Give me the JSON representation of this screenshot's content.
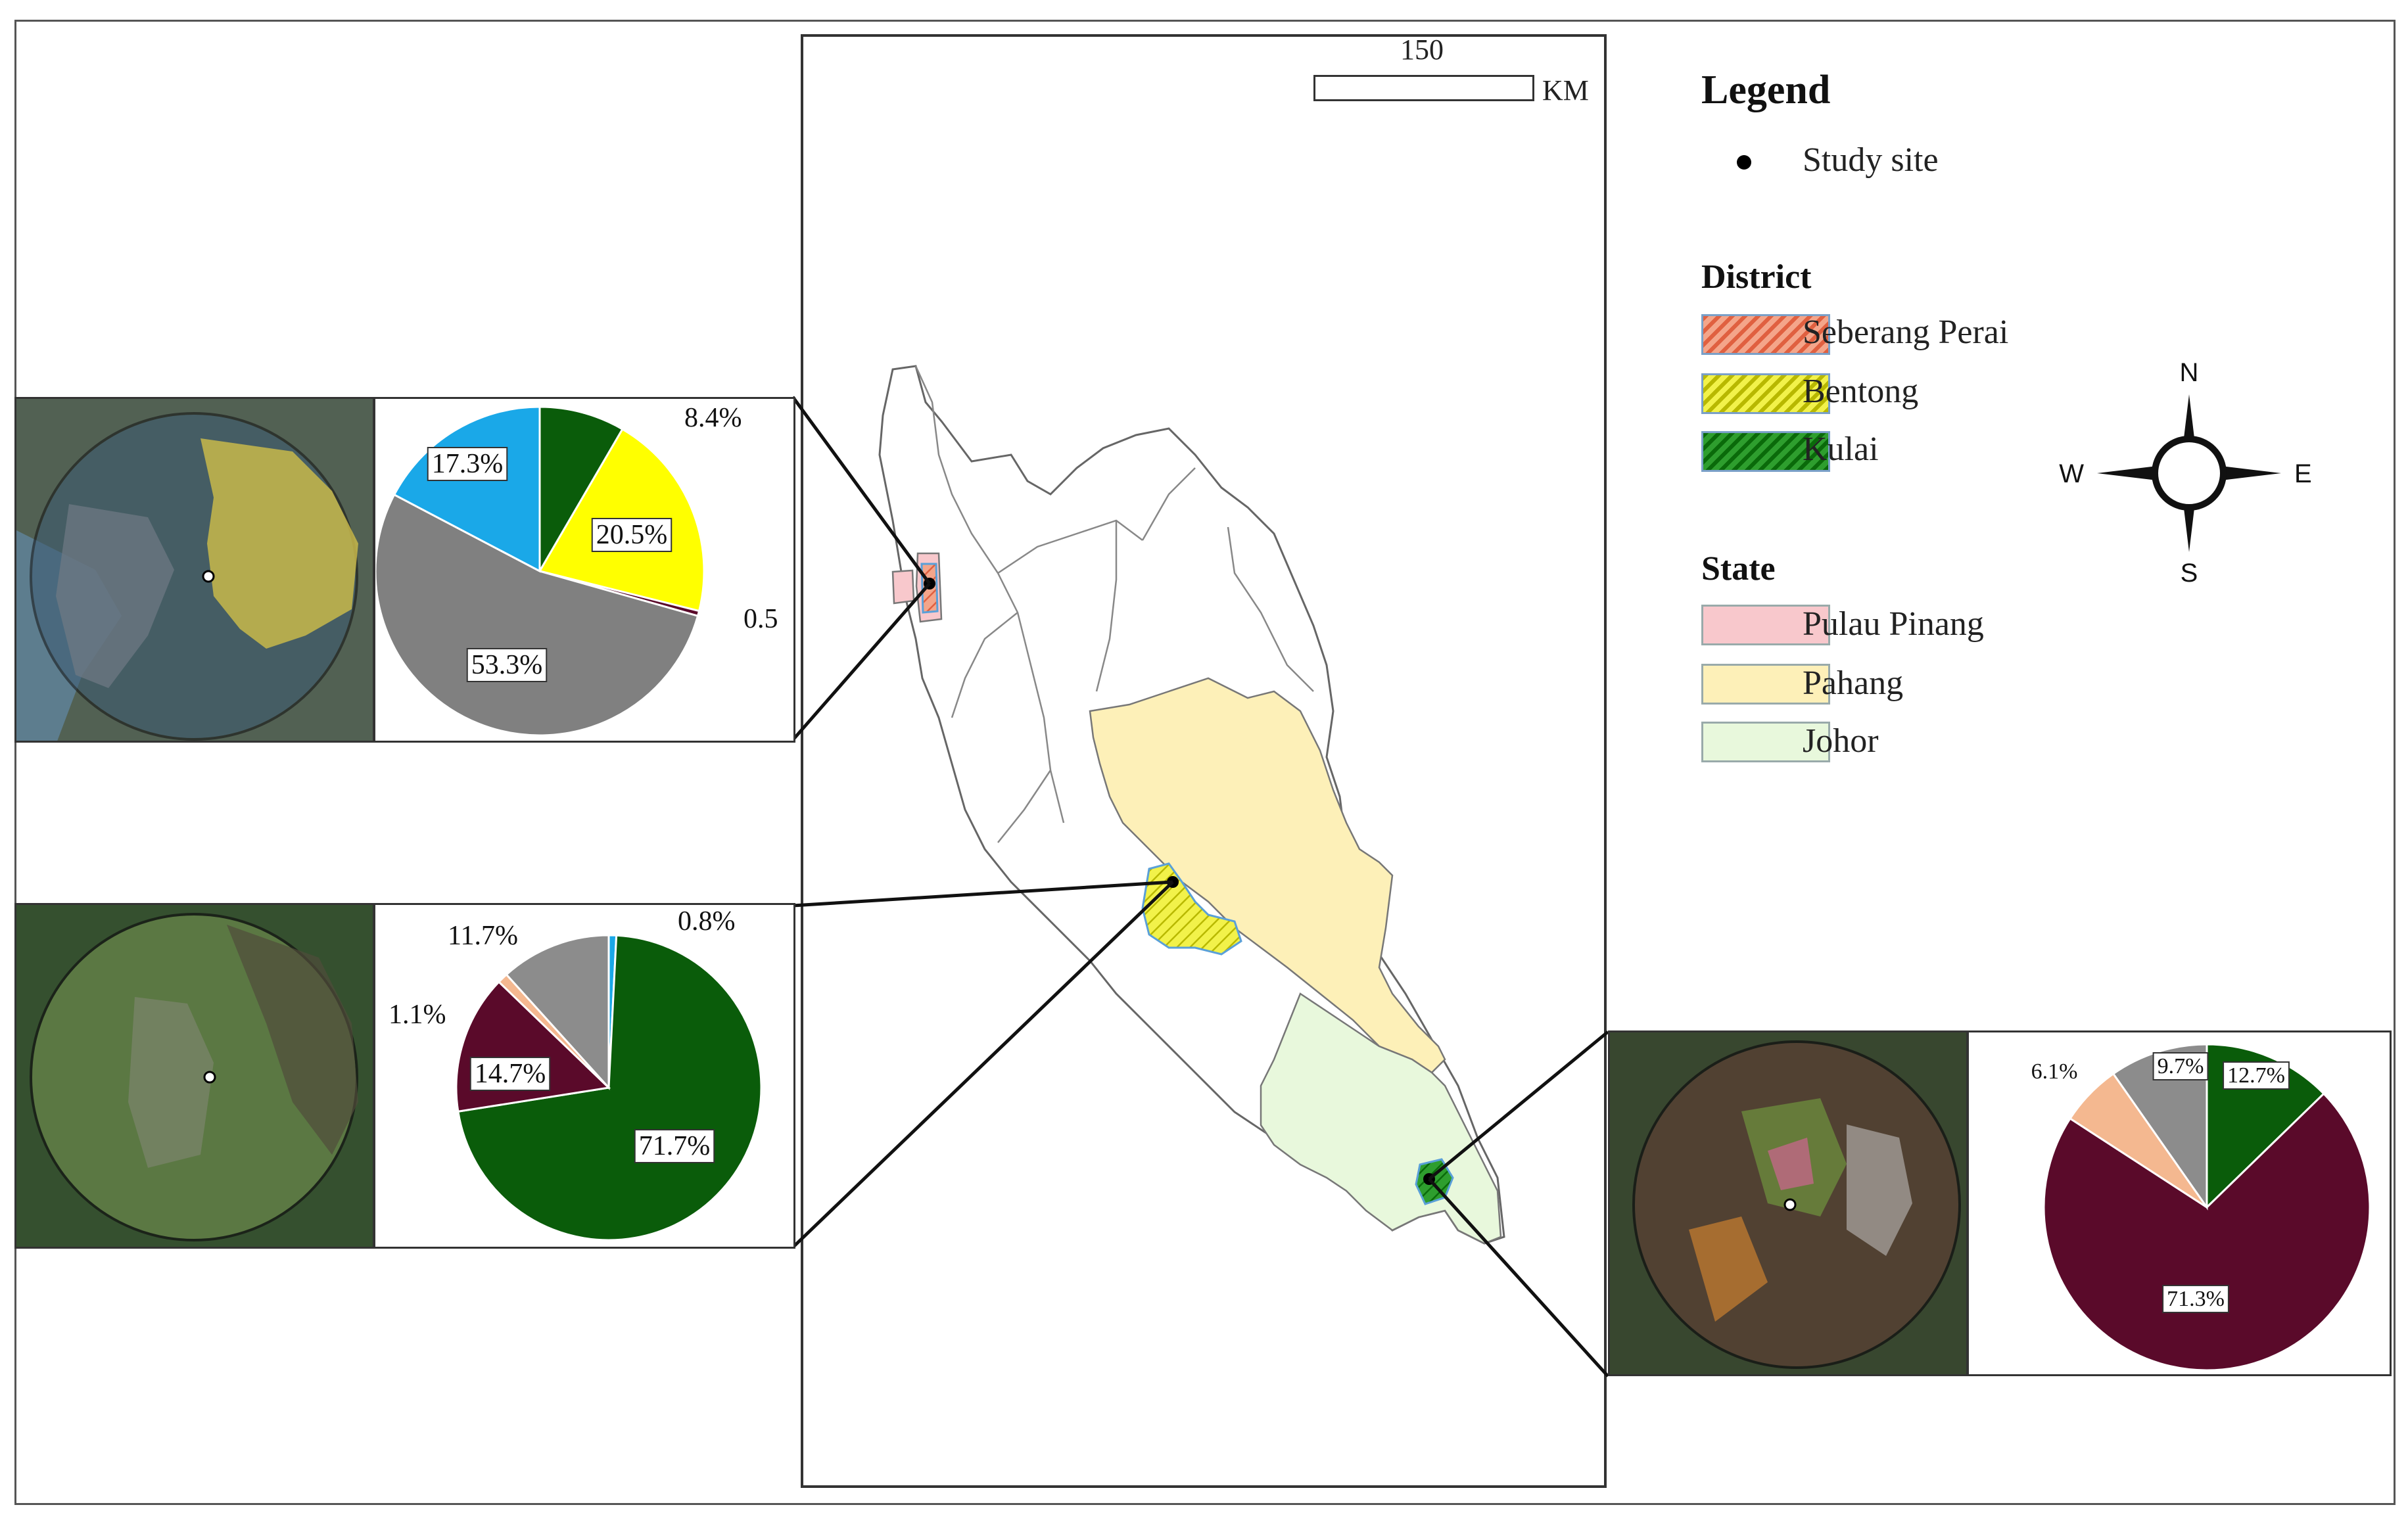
{
  "scale_bar": {
    "value": "150",
    "unit": "KM"
  },
  "legend": {
    "title": "Legend",
    "study_site": "Study site",
    "district_heading": "District",
    "districts": [
      {
        "label": "Seberang Perai",
        "fill": "#f4a58a",
        "hatch": "#e06040"
      },
      {
        "label": "Bentong",
        "fill": "#f2f24a",
        "hatch": "#c8c800"
      },
      {
        "label": "Kulai",
        "fill": "#2e9e2e",
        "hatch": "#0a6a0a"
      }
    ],
    "state_heading": "State",
    "states": [
      {
        "label": "Pulau Pinang",
        "fill": "#f8c8cc"
      },
      {
        "label": "Pahang",
        "fill": "#fdf0b8"
      },
      {
        "label": "Johor",
        "fill": "#e8f8dc"
      }
    ]
  },
  "compass": {
    "n": "N",
    "s": "S",
    "e": "E",
    "w": "W"
  },
  "chart_data": [
    {
      "type": "pie",
      "site": "Seberang Perai",
      "slices": [
        {
          "value": 8.4,
          "label": "8.4%",
          "color": "#0a5c0a"
        },
        {
          "value": 20.5,
          "label": "20.5%",
          "color": "#ffff00"
        },
        {
          "value": 0.5,
          "label": "0.5",
          "color": "#5a0a2a"
        },
        {
          "value": 53.3,
          "label": "53.3%",
          "color": "#808080"
        },
        {
          "value": 17.3,
          "label": "17.3%",
          "color": "#1aa8e8"
        }
      ]
    },
    {
      "type": "pie",
      "site": "Bentong",
      "slices": [
        {
          "value": 0.8,
          "label": "0.8%",
          "color": "#1aa8e8"
        },
        {
          "value": 71.7,
          "label": "71.7%",
          "color": "#0a5c0a"
        },
        {
          "value": 14.7,
          "label": "14.7%",
          "color": "#5a0a2a"
        },
        {
          "value": 1.1,
          "label": "1.1%",
          "color": "#f4b890"
        },
        {
          "value": 11.7,
          "label": "11.7%",
          "color": "#8c8c8c"
        }
      ]
    },
    {
      "type": "pie",
      "site": "Kulai",
      "slices": [
        {
          "value": 12.7,
          "label": "12.7%",
          "color": "#0a5c0a"
        },
        {
          "value": 71.3,
          "label": "71.3%",
          "color": "#5a0a2a"
        },
        {
          "value": 6.1,
          "label": "6.1%",
          "color": "#f4b890"
        },
        {
          "value": 9.7,
          "label": "9.7%",
          "color": "#8c8c8c"
        }
      ]
    }
  ]
}
